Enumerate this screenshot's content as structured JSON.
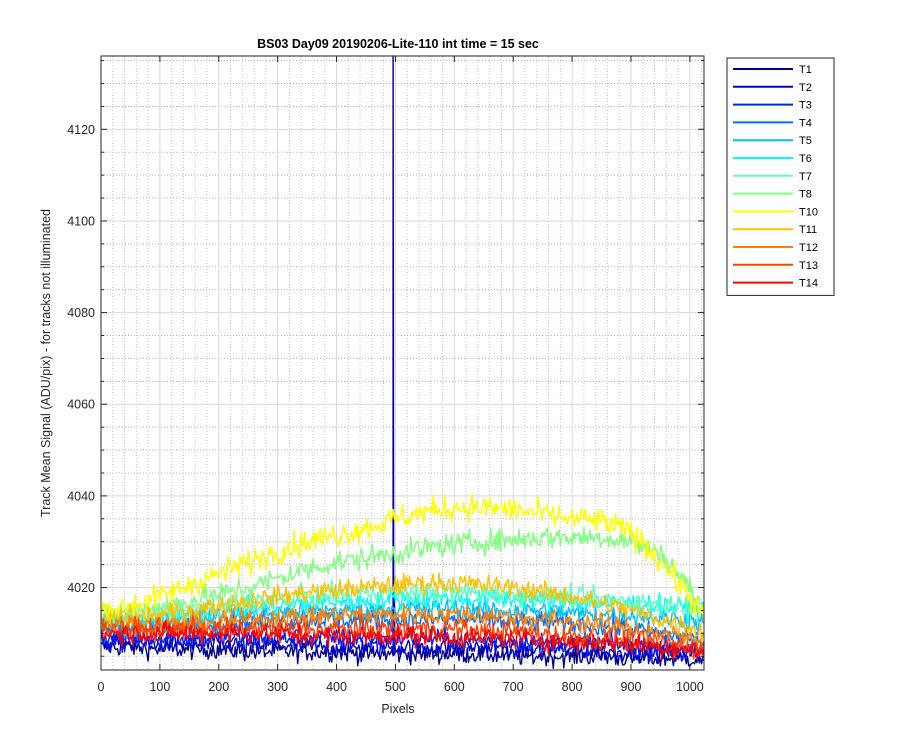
{
  "chart_data": {
    "type": "line",
    "title": "BS03 Day09 20190206-Lite-110 int time = 15 sec",
    "xlabel": "Pixels",
    "ylabel": "Track Mean Signal (ADU/pix) - for tracks not illuminated",
    "xlim": [
      0,
      1024
    ],
    "ylim": [
      4002,
      4136
    ],
    "xticks": [
      0,
      100,
      200,
      300,
      400,
      500,
      600,
      700,
      800,
      900,
      1000
    ],
    "yticks": [
      4020,
      4040,
      4060,
      4080,
      4100,
      4120
    ],
    "yminor_ticks": [
      4005,
      4010,
      4015,
      4025,
      4030,
      4035,
      4045,
      4050,
      4055,
      4065,
      4070,
      4075,
      4085,
      4090,
      4095,
      4105,
      4110,
      4115,
      4125,
      4130,
      4135
    ],
    "grid": true,
    "minor_grid": true,
    "legend_position": "outside-right",
    "x": [
      0,
      50,
      100,
      150,
      200,
      250,
      300,
      350,
      400,
      450,
      500,
      550,
      600,
      650,
      700,
      750,
      800,
      850,
      900,
      950,
      1000,
      1024
    ],
    "series": [
      {
        "name": "T1",
        "color": "#00008f",
        "noise": 1.5,
        "values": [
          4007,
          4007,
          4006.5,
          4006.5,
          4006.5,
          4006,
          4006,
          4006,
          4006,
          4005.5,
          4005.5,
          4005.5,
          4005.5,
          4005.5,
          4005,
          4005,
          4005,
          4005,
          4004.5,
          4004.5,
          4004.5,
          4004
        ],
        "spike": {
          "x": 496,
          "y": 4136
        }
      },
      {
        "name": "T2",
        "color": "#0000cf",
        "noise": 1.5,
        "values": [
          4008,
          4008,
          4008,
          4007.5,
          4007.5,
          4007.5,
          4007.5,
          4007,
          4007,
          4007,
          4007,
          4007,
          4007,
          4007,
          4006.5,
          4006.5,
          4006.5,
          4006,
          4006,
          4006,
          4005.5,
          4005
        ],
        "spike": {
          "x": 498,
          "y": 4019
        }
      },
      {
        "name": "T3",
        "color": "#0020ff",
        "noise": 1.5,
        "values": [
          4009,
          4009,
          4009,
          4009,
          4009,
          4009,
          4009,
          4009,
          4009,
          4009,
          4009,
          4009,
          4008.5,
          4008.5,
          4008.5,
          4008,
          4008,
          4008,
          4007.5,
          4007,
          4006.5,
          4006
        ]
      },
      {
        "name": "T4",
        "color": "#0070ff",
        "noise": 1.6,
        "values": [
          4011,
          4011,
          4011,
          4011.5,
          4012,
          4012.5,
          4012.5,
          4013,
          4013,
          4013,
          4013,
          4013,
          4013,
          4013,
          4012.5,
          4012.5,
          4012,
          4011.5,
          4011,
          4010,
          4009,
          4008
        ]
      },
      {
        "name": "T5",
        "color": "#00bfff",
        "noise": 1.6,
        "values": [
          4012,
          4012,
          4012.5,
          4013,
          4013.5,
          4014,
          4014.5,
          4015,
          4015,
          4015,
          4015.5,
          4015.5,
          4015.5,
          4015,
          4015,
          4015,
          4014.5,
          4014,
          4014,
          4013.5,
          4013,
          4012
        ]
      },
      {
        "name": "T6",
        "color": "#00ffff",
        "noise": 1.6,
        "values": [
          4013,
          4013,
          4013.5,
          4014,
          4015,
          4015.5,
          4016,
          4016.5,
          4017,
          4017,
          4017.5,
          4017.5,
          4017.5,
          4017.5,
          4017.5,
          4017,
          4017,
          4016.5,
          4016.5,
          4016,
          4015.5,
          4015
        ]
      },
      {
        "name": "T7",
        "color": "#60ffc0",
        "noise": 1.6,
        "values": [
          4013,
          4013.5,
          4014,
          4015,
          4016,
          4017,
          4017.5,
          4018,
          4018.5,
          4019,
          4019,
          4019,
          4019,
          4019,
          4018.5,
          4018,
          4018,
          4017.5,
          4017,
          4016.5,
          4016,
          4015
        ]
      },
      {
        "name": "T8",
        "color": "#80ff80",
        "noise": 1.8,
        "values": [
          4014,
          4015,
          4016,
          4017,
          4018.5,
          4020,
          4022,
          4024,
          4025.5,
          4026.5,
          4027.5,
          4028.5,
          4029.5,
          4030,
          4030.5,
          4031,
          4031,
          4031,
          4030,
          4027.5,
          4020,
          4015
        ]
      },
      {
        "name": "T10",
        "color": "#ffff00",
        "noise": 2.0,
        "values": [
          4015,
          4016,
          4018,
          4020.5,
          4023,
          4025.5,
          4028,
          4030,
          4031.5,
          4033,
          4035,
          4036.5,
          4037.5,
          4037.5,
          4037,
          4036,
          4035,
          4034.5,
          4032,
          4026,
          4018,
          4013
        ]
      },
      {
        "name": "T11",
        "color": "#ffbf00",
        "noise": 1.6,
        "values": [
          4013,
          4013.5,
          4014,
          4015,
          4016,
          4017,
          4018,
          4019,
          4019.5,
          4020,
          4020.5,
          4021,
          4021,
          4020.5,
          4020,
          4019,
          4018,
          4016.5,
          4015,
          4013,
          4011.5,
          4010
        ]
      },
      {
        "name": "T12",
        "color": "#ff8000",
        "noise": 1.6,
        "values": [
          4012,
          4012,
          4012,
          4012,
          4012.5,
          4013,
          4013.5,
          4013.5,
          4014,
          4014,
          4014,
          4014,
          4014,
          4014,
          4013.5,
          4013,
          4012.5,
          4012,
          4011,
          4010,
          4009,
          4008.5
        ]
      },
      {
        "name": "T13",
        "color": "#ff4000",
        "noise": 1.6,
        "values": [
          4011,
          4011,
          4011,
          4011,
          4011,
          4011,
          4011,
          4011,
          4011,
          4011,
          4011,
          4011,
          4011,
          4010.5,
          4010.5,
          4010,
          4009.5,
          4009,
          4008.5,
          4008,
          4007,
          4006.5
        ]
      },
      {
        "name": "T14",
        "color": "#ff0000",
        "noise": 1.6,
        "values": [
          4010,
          4010,
          4010,
          4010,
          4010,
          4010,
          4010,
          4009.5,
          4009.5,
          4009.5,
          4009.5,
          4009.5,
          4009,
          4009,
          4009,
          4008.5,
          4008,
          4008,
          4007.5,
          4007,
          4006.5,
          4006
        ]
      }
    ]
  }
}
